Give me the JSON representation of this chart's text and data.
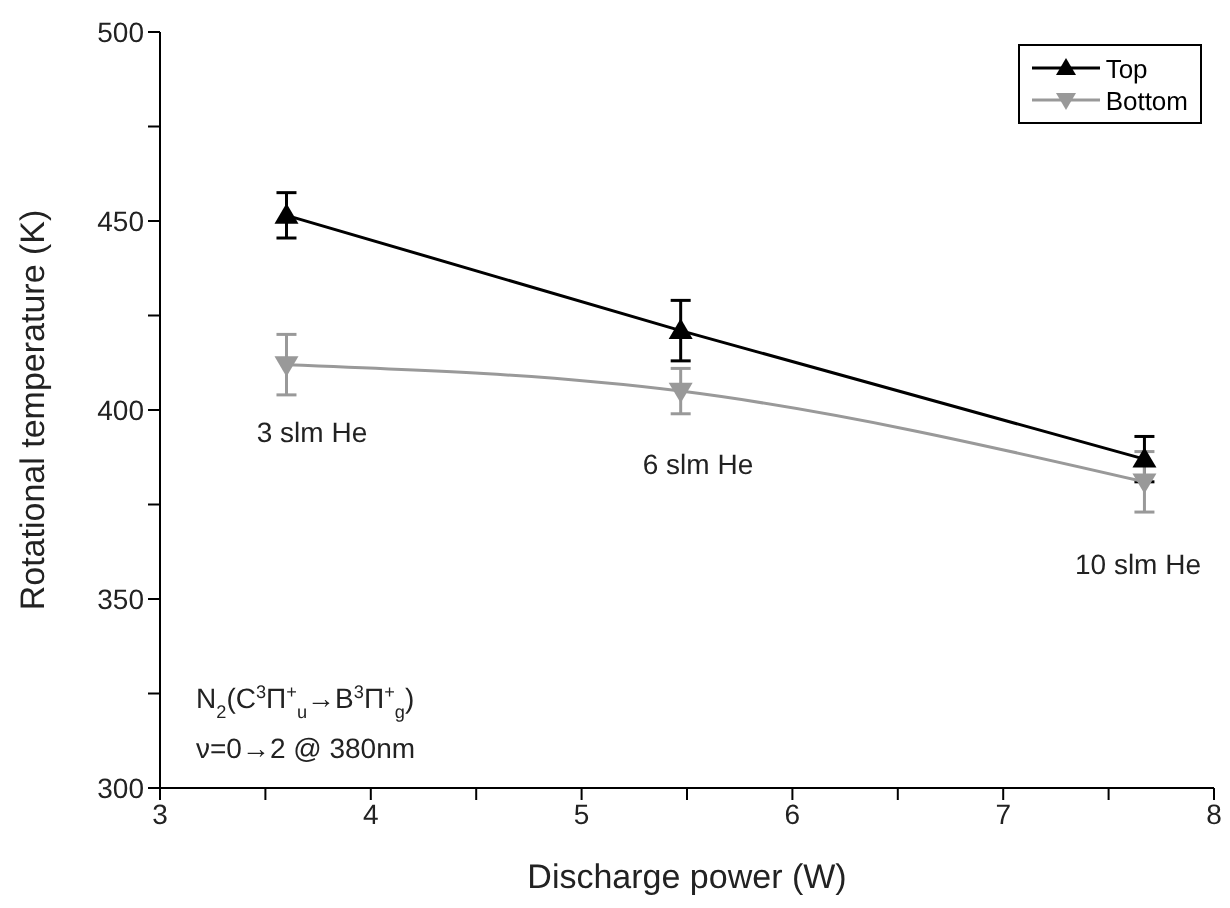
{
  "chart_data": {
    "type": "line",
    "xlabel": "Discharge power (W)",
    "ylabel": "Rotational temperature (K)",
    "xlim": [
      3,
      8
    ],
    "xticks": [
      3,
      {
        "value": 3.5,
        "label": null
      },
      4,
      {
        "value": 4.5,
        "label": null
      },
      5,
      {
        "value": 5.5,
        "label": null
      },
      6,
      {
        "value": 6.5,
        "label": null
      },
      7,
      {
        "value": 7.5,
        "label": null
      },
      8
    ],
    "ylim": [
      300,
      500
    ],
    "yticks": [
      300,
      {
        "value": 325,
        "label": null
      },
      350,
      {
        "value": 375,
        "label": null
      },
      400,
      {
        "value": 425,
        "label": null
      },
      450,
      {
        "value": 475,
        "label": null
      },
      500
    ],
    "x": [
      3.6,
      5.47,
      7.67
    ],
    "series": [
      {
        "name": "Top",
        "color": "#000000",
        "marker": "triangle",
        "values": [
          451.5,
          421,
          387
        ],
        "errors": [
          6,
          8,
          6
        ]
      },
      {
        "name": "Bottom",
        "color": "#999999",
        "marker": "triangle_down",
        "values": [
          412,
          405,
          381
        ],
        "errors": [
          8,
          6,
          8
        ]
      }
    ],
    "annotations": [
      "3 slm He",
      "6 slm He",
      "10 slm He",
      "N$_{2}$(C$^{3}$Π$^{+}$$_{u}$→B$^{3}$Π$^{+}$$_{g}$)",
      "ν=0→2 @ 380nm"
    ],
    "legend": "top right",
    "line_style": "solid"
  }
}
